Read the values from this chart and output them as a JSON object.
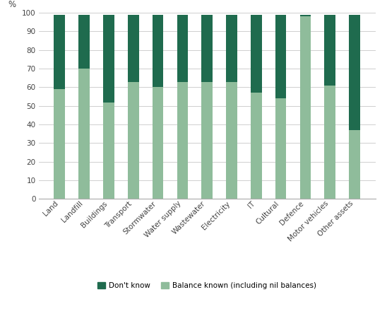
{
  "categories": [
    "Land",
    "Landfill",
    "Buildings",
    "Transport",
    "Stormwater",
    "Water supply",
    "Wastewater",
    "Electricity",
    "IT",
    "Cultural",
    "Defence",
    "Motor vehicles",
    "Other assets"
  ],
  "balance_known": [
    59,
    70,
    52,
    63,
    60,
    63,
    63,
    63,
    57,
    54,
    98,
    61,
    37
  ],
  "dont_know": [
    40,
    29,
    47,
    36,
    39,
    36,
    36,
    36,
    42,
    45,
    1,
    38,
    62
  ],
  "color_dont_know": "#1f6b4e",
  "color_balance_known": "#8fbc9b",
  "ylabel": "%",
  "ylim": [
    0,
    100
  ],
  "yticks": [
    0,
    10,
    20,
    30,
    40,
    50,
    60,
    70,
    80,
    90,
    100
  ],
  "legend_dont_know": "Don't know",
  "legend_balance_known": "Balance known (including nil balances)",
  "background_color": "#ffffff",
  "grid_color": "#c8c8c8",
  "bar_width": 0.45,
  "tick_fontsize": 7.5,
  "ylabel_fontsize": 8.5,
  "legend_fontsize": 7.5
}
